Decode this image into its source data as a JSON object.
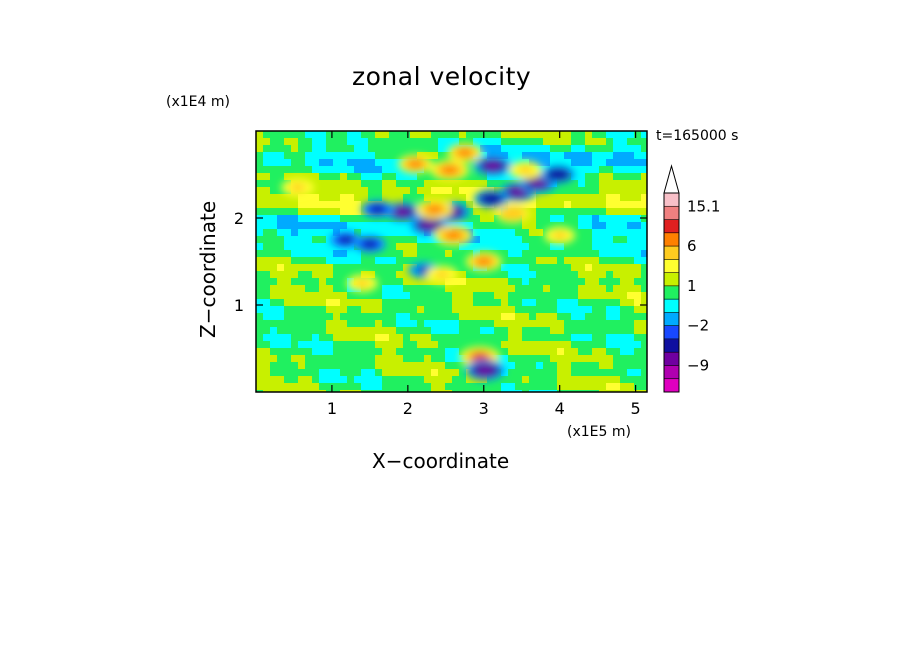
{
  "chart_data": {
    "type": "heatmap",
    "title": "zonal velocity",
    "xlabel": "X−coordinate",
    "ylabel": "Z−coordinate",
    "x_unit_label": "(x1E5 m)",
    "y_unit_label": "(x1E4 m)",
    "time_label": "t=165000 s",
    "xlim": [
      0,
      5.15
    ],
    "ylim": [
      0,
      3.0
    ],
    "x_ticks": [
      1,
      2,
      3,
      4,
      5
    ],
    "y_ticks": [
      1,
      2
    ],
    "colorbar": {
      "levels": [
        -15,
        -12,
        -9,
        -6,
        -3,
        -2,
        -1,
        0,
        1,
        2,
        3,
        6,
        9,
        12,
        15.1
      ],
      "labeled_ticks": [
        "15.1",
        "6",
        "1",
        "−2",
        "−9"
      ],
      "colors": [
        "#e000c0",
        "#b000b0",
        "#7000a0",
        "#1010a0",
        "#1848ff",
        "#00aaff",
        "#00ffff",
        "#20f060",
        "#c8f000",
        "#ffff30",
        "#ffcc20",
        "#ff8000",
        "#e02020",
        "#f08080",
        "#f8c0c8"
      ],
      "overflow_color": "#ffffff"
    },
    "features": [
      {
        "x": 2.28,
        "z": 1.92,
        "u": -8.0
      },
      {
        "x": 1.93,
        "z": 2.07,
        "u": -7.0
      },
      {
        "x": 2.57,
        "z": 2.07,
        "u": -8.0
      },
      {
        "x": 3.12,
        "z": 2.6,
        "u": -8.0
      },
      {
        "x": 3.45,
        "z": 2.3,
        "u": -7.0
      },
      {
        "x": 3.72,
        "z": 2.4,
        "u": -7.0
      },
      {
        "x": 3.98,
        "z": 2.5,
        "u": -6.0
      },
      {
        "x": 3.1,
        "z": 2.22,
        "u": -6.0
      },
      {
        "x": 1.6,
        "z": 2.1,
        "u": -5.0
      },
      {
        "x": 1.18,
        "z": 1.75,
        "u": -5.0
      },
      {
        "x": 1.5,
        "z": 1.7,
        "u": -5.0
      },
      {
        "x": 2.2,
        "z": 1.4,
        "u": -3.5
      },
      {
        "x": 2.55,
        "z": 2.55,
        "u": 8.0
      },
      {
        "x": 2.6,
        "z": 1.8,
        "u": 8.0
      },
      {
        "x": 2.35,
        "z": 2.1,
        "u": 7.0
      },
      {
        "x": 2.1,
        "z": 2.62,
        "u": 6.0
      },
      {
        "x": 2.75,
        "z": 2.75,
        "u": 6.0
      },
      {
        "x": 3.0,
        "z": 1.5,
        "u": 6.5
      },
      {
        "x": 0.55,
        "z": 2.35,
        "u": 5.0
      },
      {
        "x": 1.4,
        "z": 1.25,
        "u": 4.0
      },
      {
        "x": 3.38,
        "z": 2.05,
        "u": 5.5
      },
      {
        "x": 4.0,
        "z": 1.8,
        "u": 4.0
      },
      {
        "x": 3.55,
        "z": 2.55,
        "u": 5.0
      },
      {
        "x": 2.95,
        "z": 0.4,
        "u": 9.0
      },
      {
        "x": 3.02,
        "z": 0.25,
        "u": -9.0
      },
      {
        "x": 2.45,
        "z": 1.35,
        "u": 4.0
      }
    ]
  }
}
